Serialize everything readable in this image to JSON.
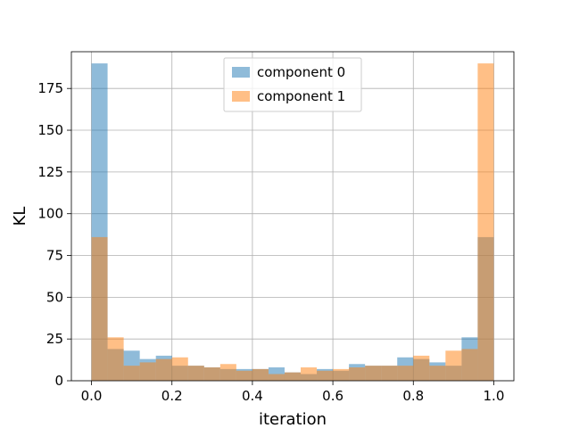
{
  "chart_data": {
    "type": "bar",
    "subtype": "overlapping-histogram",
    "xlabel": "iteration",
    "ylabel": "KL",
    "xlim": [
      -0.05,
      1.05
    ],
    "ylim": [
      0,
      197
    ],
    "xticks": [
      0.0,
      0.2,
      0.4,
      0.6,
      0.8,
      1.0
    ],
    "xtick_labels": [
      "0.0",
      "0.2",
      "0.4",
      "0.6",
      "0.8",
      "1.0"
    ],
    "yticks": [
      0,
      25,
      50,
      75,
      100,
      125,
      150,
      175
    ],
    "ytick_labels": [
      "0",
      "25",
      "50",
      "75",
      "100",
      "125",
      "150",
      "175"
    ],
    "grid": true,
    "legend_position": "top-center",
    "bin_width": 0.04,
    "bin_edges": [
      0.0,
      0.04,
      0.08,
      0.12,
      0.16,
      0.2,
      0.24,
      0.28,
      0.32,
      0.36,
      0.4,
      0.44,
      0.48,
      0.52,
      0.56,
      0.6,
      0.64,
      0.68,
      0.72,
      0.76,
      0.8,
      0.84,
      0.88,
      0.92,
      0.96,
      1.0
    ],
    "series": [
      {
        "name": "component 0",
        "color": "#1f77b4",
        "alpha": 0.5,
        "values": [
          190,
          19,
          18,
          13,
          15,
          9,
          9,
          8,
          7,
          7,
          7,
          8,
          5,
          4,
          7,
          6,
          10,
          9,
          9,
          14,
          13,
          11,
          9,
          26,
          86
        ]
      },
      {
        "name": "component 1",
        "color": "#ff7f0e",
        "alpha": 0.5,
        "values": [
          86,
          26,
          9,
          11,
          13,
          14,
          9,
          8,
          10,
          6,
          7,
          4,
          5,
          8,
          6,
          7,
          8,
          9,
          9,
          9,
          15,
          9,
          18,
          19,
          190
        ]
      }
    ]
  }
}
